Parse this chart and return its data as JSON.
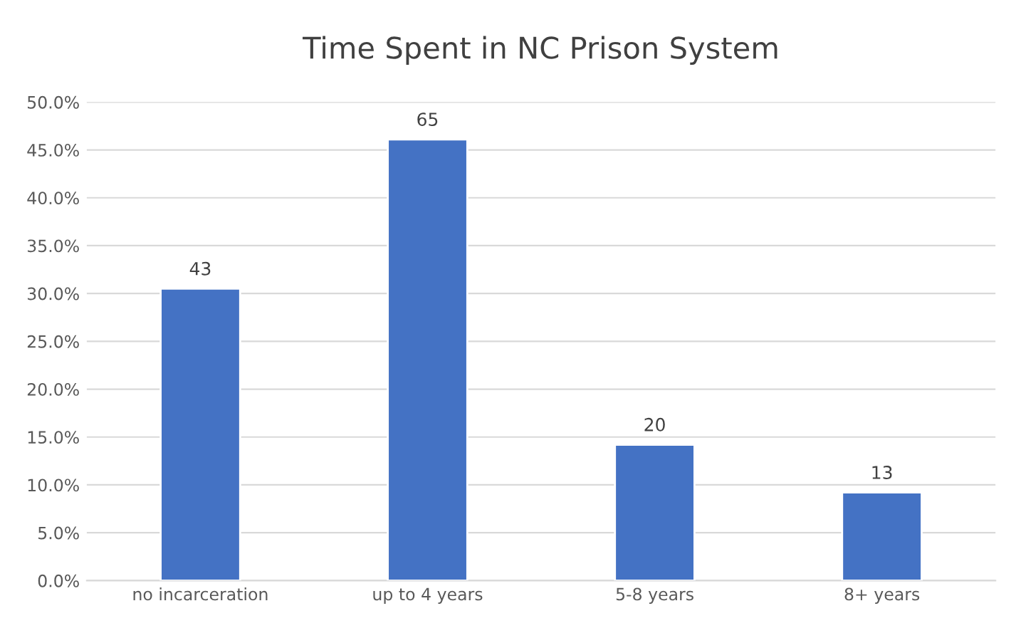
{
  "chart_data": {
    "type": "bar",
    "title": "Time Spent in NC Prison System",
    "categories": [
      "no incarceration",
      "up to 4 years",
      "5-8 years",
      "8+ years"
    ],
    "values": [
      30.5,
      46.1,
      14.2,
      9.2
    ],
    "annotations": [
      {
        "text": "43",
        "x": "no incarceration",
        "y": 30.5
      },
      {
        "text": "65",
        "x": "up to 4 years",
        "y": 46.1
      },
      {
        "text": "20",
        "x": "5-8 years",
        "y": 14.2
      },
      {
        "text": "13",
        "x": "8+ years",
        "y": 9.2
      }
    ],
    "color": "#4472c4",
    "ylim": [
      0,
      50
    ],
    "yticks": [
      {
        "value": 0,
        "label": "0.0%"
      },
      {
        "value": 5,
        "label": "5.0%"
      },
      {
        "value": 10,
        "label": "10.0%"
      },
      {
        "value": 15,
        "label": "15.0%"
      },
      {
        "value": 20,
        "label": "20.0%"
      },
      {
        "value": 25,
        "label": "25.0%"
      },
      {
        "value": 30,
        "label": "30.0%"
      },
      {
        "value": 35,
        "label": "35.0%"
      },
      {
        "value": 40,
        "label": "40.0%"
      },
      {
        "value": 45,
        "label": "45.0%"
      },
      {
        "value": 50,
        "label": "50.0%"
      }
    ],
    "grid": "y"
  }
}
